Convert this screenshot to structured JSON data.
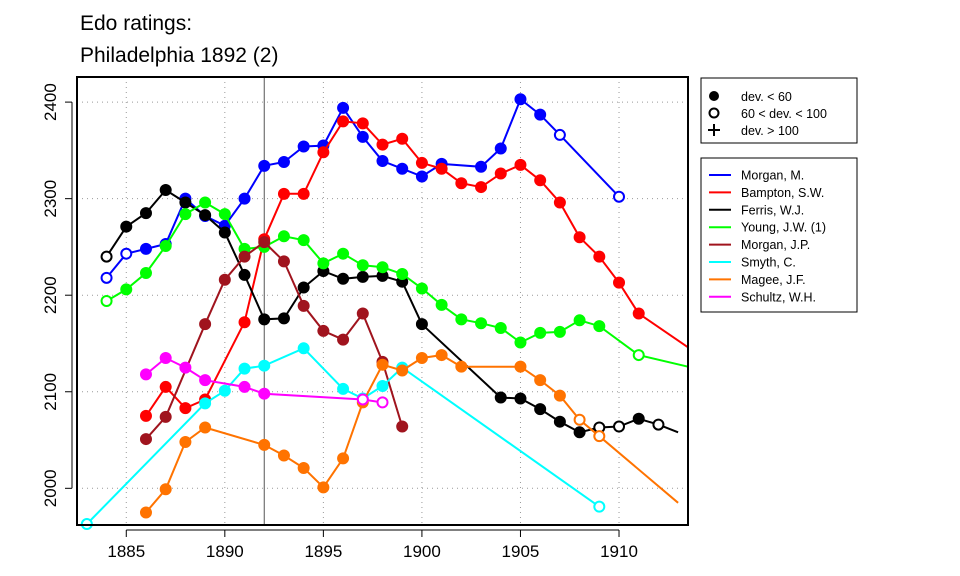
{
  "chart_data": {
    "type": "line",
    "title": "Edo ratings:",
    "subtitle": "Philadelphia 1892 (2)",
    "xlabel": "",
    "ylabel": "",
    "xlim": [
      1882.5,
      1913.5
    ],
    "ylim": [
      1962,
      2426
    ],
    "xticks": [
      1885,
      1890,
      1895,
      1900,
      1905,
      1910
    ],
    "yticks": [
      2000,
      2100,
      2200,
      2300,
      2400
    ],
    "grid": true,
    "vline_x": 1892,
    "marker_legend": {
      "placement": "top-right",
      "entries": [
        {
          "marker": "filled",
          "label": "dev. < 60"
        },
        {
          "marker": "open",
          "label": "60 < dev. < 100"
        },
        {
          "marker": "plus",
          "label": "dev. > 100"
        }
      ]
    },
    "series_legend_placement": "right",
    "series": [
      {
        "name": "Morgan, M.",
        "color": "#0000ff",
        "points": [
          {
            "x": 1884,
            "y": 2218,
            "m": "o"
          },
          {
            "x": 1885,
            "y": 2243,
            "m": "o"
          },
          {
            "x": 1886,
            "y": 2248,
            "m": "f"
          },
          {
            "x": 1887,
            "y": 2253,
            "m": "f"
          },
          {
            "x": 1888,
            "y": 2300,
            "m": "f"
          },
          {
            "x": 1889,
            "y": 2282,
            "m": "f"
          },
          {
            "x": 1890,
            "y": 2272,
            "m": "f"
          },
          {
            "x": 1891,
            "y": 2300,
            "m": "f"
          },
          {
            "x": 1892,
            "y": 2334,
            "m": "f"
          },
          {
            "x": 1893,
            "y": 2338,
            "m": "f"
          },
          {
            "x": 1894,
            "y": 2354,
            "m": "f"
          },
          {
            "x": 1895,
            "y": 2355,
            "m": "f"
          },
          {
            "x": 1896,
            "y": 2394,
            "m": "f"
          },
          {
            "x": 1897,
            "y": 2364,
            "m": "f"
          },
          {
            "x": 1898,
            "y": 2339,
            "m": "f"
          },
          {
            "x": 1899,
            "y": 2331,
            "m": "f"
          },
          {
            "x": 1900,
            "y": 2323,
            "m": "f"
          },
          {
            "x": 1901,
            "y": 2336,
            "m": "f"
          },
          {
            "x": 1903,
            "y": 2333,
            "m": "f"
          },
          {
            "x": 1904,
            "y": 2352,
            "m": "f"
          },
          {
            "x": 1905,
            "y": 2403,
            "m": "f"
          },
          {
            "x": 1906,
            "y": 2387,
            "m": "f"
          },
          {
            "x": 1907,
            "y": 2366,
            "m": "o"
          },
          {
            "x": 1910,
            "y": 2302,
            "m": "o"
          }
        ]
      },
      {
        "name": "Bampton, S.W.",
        "color": "#ff0000",
        "points": [
          {
            "x": 1886,
            "y": 2075,
            "m": "f"
          },
          {
            "x": 1887,
            "y": 2105,
            "m": "f"
          },
          {
            "x": 1888,
            "y": 2083,
            "m": "f"
          },
          {
            "x": 1889,
            "y": 2092,
            "m": "f"
          },
          {
            "x": 1891,
            "y": 2172,
            "m": "f"
          },
          {
            "x": 1892,
            "y": 2258,
            "m": "f"
          },
          {
            "x": 1893,
            "y": 2305,
            "m": "f"
          },
          {
            "x": 1894,
            "y": 2305,
            "m": "f"
          },
          {
            "x": 1895,
            "y": 2348,
            "m": "f"
          },
          {
            "x": 1896,
            "y": 2380,
            "m": "f"
          },
          {
            "x": 1897,
            "y": 2378,
            "m": "f"
          },
          {
            "x": 1898,
            "y": 2356,
            "m": "f"
          },
          {
            "x": 1899,
            "y": 2362,
            "m": "f"
          },
          {
            "x": 1900,
            "y": 2337,
            "m": "f"
          },
          {
            "x": 1901,
            "y": 2331,
            "m": "f"
          },
          {
            "x": 1902,
            "y": 2316,
            "m": "f"
          },
          {
            "x": 1903,
            "y": 2312,
            "m": "f"
          },
          {
            "x": 1904,
            "y": 2326,
            "m": "f"
          },
          {
            "x": 1905,
            "y": 2335,
            "m": "f"
          },
          {
            "x": 1906,
            "y": 2319,
            "m": "f"
          },
          {
            "x": 1907,
            "y": 2296,
            "m": "f"
          },
          {
            "x": 1908,
            "y": 2260,
            "m": "f"
          },
          {
            "x": 1909,
            "y": 2240,
            "m": "f"
          },
          {
            "x": 1910,
            "y": 2213,
            "m": "f"
          },
          {
            "x": 1911,
            "y": 2181,
            "m": "f"
          },
          {
            "x": 1913.5,
            "y": 2146,
            "m": "n"
          }
        ]
      },
      {
        "name": "Ferris, W.J.",
        "color": "#000000",
        "points": [
          {
            "x": 1884,
            "y": 2240,
            "m": "o"
          },
          {
            "x": 1885,
            "y": 2271,
            "m": "f"
          },
          {
            "x": 1886,
            "y": 2285,
            "m": "f"
          },
          {
            "x": 1887,
            "y": 2309,
            "m": "f"
          },
          {
            "x": 1888,
            "y": 2296,
            "m": "f"
          },
          {
            "x": 1889,
            "y": 2283,
            "m": "f"
          },
          {
            "x": 1890,
            "y": 2265,
            "m": "f"
          },
          {
            "x": 1891,
            "y": 2221,
            "m": "f"
          },
          {
            "x": 1892,
            "y": 2175,
            "m": "f"
          },
          {
            "x": 1893,
            "y": 2176,
            "m": "f"
          },
          {
            "x": 1894,
            "y": 2208,
            "m": "f"
          },
          {
            "x": 1895,
            "y": 2225,
            "m": "f"
          },
          {
            "x": 1896,
            "y": 2217,
            "m": "f"
          },
          {
            "x": 1897,
            "y": 2219,
            "m": "f"
          },
          {
            "x": 1898,
            "y": 2220,
            "m": "f"
          },
          {
            "x": 1899,
            "y": 2214,
            "m": "f"
          },
          {
            "x": 1900,
            "y": 2170,
            "m": "f"
          },
          {
            "x": 1904,
            "y": 2094,
            "m": "f"
          },
          {
            "x": 1905,
            "y": 2093,
            "m": "f"
          },
          {
            "x": 1906,
            "y": 2082,
            "m": "f"
          },
          {
            "x": 1907,
            "y": 2069,
            "m": "f"
          },
          {
            "x": 1908,
            "y": 2058,
            "m": "f"
          },
          {
            "x": 1909,
            "y": 2063,
            "m": "o"
          },
          {
            "x": 1910,
            "y": 2064,
            "m": "o"
          },
          {
            "x": 1911,
            "y": 2072,
            "m": "f"
          },
          {
            "x": 1912,
            "y": 2066,
            "m": "o"
          },
          {
            "x": 1913,
            "y": 2058,
            "m": "n"
          }
        ]
      },
      {
        "name": "Young, J.W. (1)",
        "color": "#00ff00",
        "points": [
          {
            "x": 1884,
            "y": 2194,
            "m": "o"
          },
          {
            "x": 1885,
            "y": 2206,
            "m": "f"
          },
          {
            "x": 1886,
            "y": 2223,
            "m": "f"
          },
          {
            "x": 1887,
            "y": 2251,
            "m": "f"
          },
          {
            "x": 1888,
            "y": 2284,
            "m": "f"
          },
          {
            "x": 1889,
            "y": 2296,
            "m": "f"
          },
          {
            "x": 1890,
            "y": 2284,
            "m": "f"
          },
          {
            "x": 1891,
            "y": 2248,
            "m": "f"
          },
          {
            "x": 1892,
            "y": 2250,
            "m": "f"
          },
          {
            "x": 1893,
            "y": 2261,
            "m": "f"
          },
          {
            "x": 1894,
            "y": 2257,
            "m": "f"
          },
          {
            "x": 1895,
            "y": 2233,
            "m": "f"
          },
          {
            "x": 1896,
            "y": 2243,
            "m": "f"
          },
          {
            "x": 1897,
            "y": 2231,
            "m": "f"
          },
          {
            "x": 1898,
            "y": 2229,
            "m": "f"
          },
          {
            "x": 1899,
            "y": 2222,
            "m": "f"
          },
          {
            "x": 1900,
            "y": 2207,
            "m": "f"
          },
          {
            "x": 1901,
            "y": 2190,
            "m": "f"
          },
          {
            "x": 1902,
            "y": 2175,
            "m": "f"
          },
          {
            "x": 1903,
            "y": 2171,
            "m": "f"
          },
          {
            "x": 1904,
            "y": 2166,
            "m": "f"
          },
          {
            "x": 1905,
            "y": 2151,
            "m": "f"
          },
          {
            "x": 1906,
            "y": 2161,
            "m": "f"
          },
          {
            "x": 1907,
            "y": 2162,
            "m": "f"
          },
          {
            "x": 1908,
            "y": 2174,
            "m": "f"
          },
          {
            "x": 1909,
            "y": 2168,
            "m": "f"
          },
          {
            "x": 1911,
            "y": 2138,
            "m": "o"
          },
          {
            "x": 1913.5,
            "y": 2126,
            "m": "n"
          }
        ]
      },
      {
        "name": "Morgan, J.P.",
        "color": "#a0141e",
        "points": [
          {
            "x": 1886,
            "y": 2051,
            "m": "f"
          },
          {
            "x": 1887,
            "y": 2074,
            "m": "f"
          },
          {
            "x": 1889,
            "y": 2170,
            "m": "f"
          },
          {
            "x": 1890,
            "y": 2216,
            "m": "f"
          },
          {
            "x": 1891,
            "y": 2240,
            "m": "f"
          },
          {
            "x": 1892,
            "y": 2255,
            "m": "f"
          },
          {
            "x": 1893,
            "y": 2235,
            "m": "f"
          },
          {
            "x": 1894,
            "y": 2189,
            "m": "f"
          },
          {
            "x": 1895,
            "y": 2163,
            "m": "f"
          },
          {
            "x": 1896,
            "y": 2154,
            "m": "f"
          },
          {
            "x": 1897,
            "y": 2181,
            "m": "f"
          },
          {
            "x": 1898,
            "y": 2131,
            "m": "f"
          },
          {
            "x": 1899,
            "y": 2064,
            "m": "f"
          }
        ]
      },
      {
        "name": "Smyth, C.",
        "color": "#00ffff",
        "points": [
          {
            "x": 1883,
            "y": 1963,
            "m": "o"
          },
          {
            "x": 1889,
            "y": 2088,
            "m": "f"
          },
          {
            "x": 1890,
            "y": 2101,
            "m": "f"
          },
          {
            "x": 1891,
            "y": 2124,
            "m": "f"
          },
          {
            "x": 1892,
            "y": 2127,
            "m": "f"
          },
          {
            "x": 1894,
            "y": 2145,
            "m": "f"
          },
          {
            "x": 1896,
            "y": 2103,
            "m": "f"
          },
          {
            "x": 1897,
            "y": 2093,
            "m": "f"
          },
          {
            "x": 1898,
            "y": 2106,
            "m": "f"
          },
          {
            "x": 1899,
            "y": 2125,
            "m": "f"
          },
          {
            "x": 1909,
            "y": 1981,
            "m": "o"
          }
        ]
      },
      {
        "name": "Magee, J.F.",
        "color": "#ff7300",
        "points": [
          {
            "x": 1886,
            "y": 1975,
            "m": "f"
          },
          {
            "x": 1887,
            "y": 1999,
            "m": "f"
          },
          {
            "x": 1888,
            "y": 2048,
            "m": "f"
          },
          {
            "x": 1889,
            "y": 2063,
            "m": "f"
          },
          {
            "x": 1892,
            "y": 2045,
            "m": "f"
          },
          {
            "x": 1893,
            "y": 2034,
            "m": "f"
          },
          {
            "x": 1894,
            "y": 2021,
            "m": "f"
          },
          {
            "x": 1895,
            "y": 2001,
            "m": "f"
          },
          {
            "x": 1896,
            "y": 2031,
            "m": "f"
          },
          {
            "x": 1897,
            "y": 2089,
            "m": "f"
          },
          {
            "x": 1898,
            "y": 2128,
            "m": "f"
          },
          {
            "x": 1899,
            "y": 2122,
            "m": "f"
          },
          {
            "x": 1900,
            "y": 2135,
            "m": "f"
          },
          {
            "x": 1901,
            "y": 2138,
            "m": "f"
          },
          {
            "x": 1902,
            "y": 2126,
            "m": "f"
          },
          {
            "x": 1905,
            "y": 2126,
            "m": "f"
          },
          {
            "x": 1906,
            "y": 2112,
            "m": "f"
          },
          {
            "x": 1907,
            "y": 2096,
            "m": "f"
          },
          {
            "x": 1908,
            "y": 2071,
            "m": "o"
          },
          {
            "x": 1909,
            "y": 2054,
            "m": "o"
          },
          {
            "x": 1913,
            "y": 1985,
            "m": "n"
          }
        ]
      },
      {
        "name": "Schultz, W.H.",
        "color": "#ff00ff",
        "points": [
          {
            "x": 1886,
            "y": 2118,
            "m": "f"
          },
          {
            "x": 1887,
            "y": 2135,
            "m": "f"
          },
          {
            "x": 1888,
            "y": 2125,
            "m": "f"
          },
          {
            "x": 1889,
            "y": 2112,
            "m": "f"
          },
          {
            "x": 1891,
            "y": 2105,
            "m": "f"
          },
          {
            "x": 1892,
            "y": 2098,
            "m": "f"
          },
          {
            "x": 1897,
            "y": 2092,
            "m": "o"
          },
          {
            "x": 1898,
            "y": 2089,
            "m": "o"
          }
        ]
      }
    ]
  }
}
